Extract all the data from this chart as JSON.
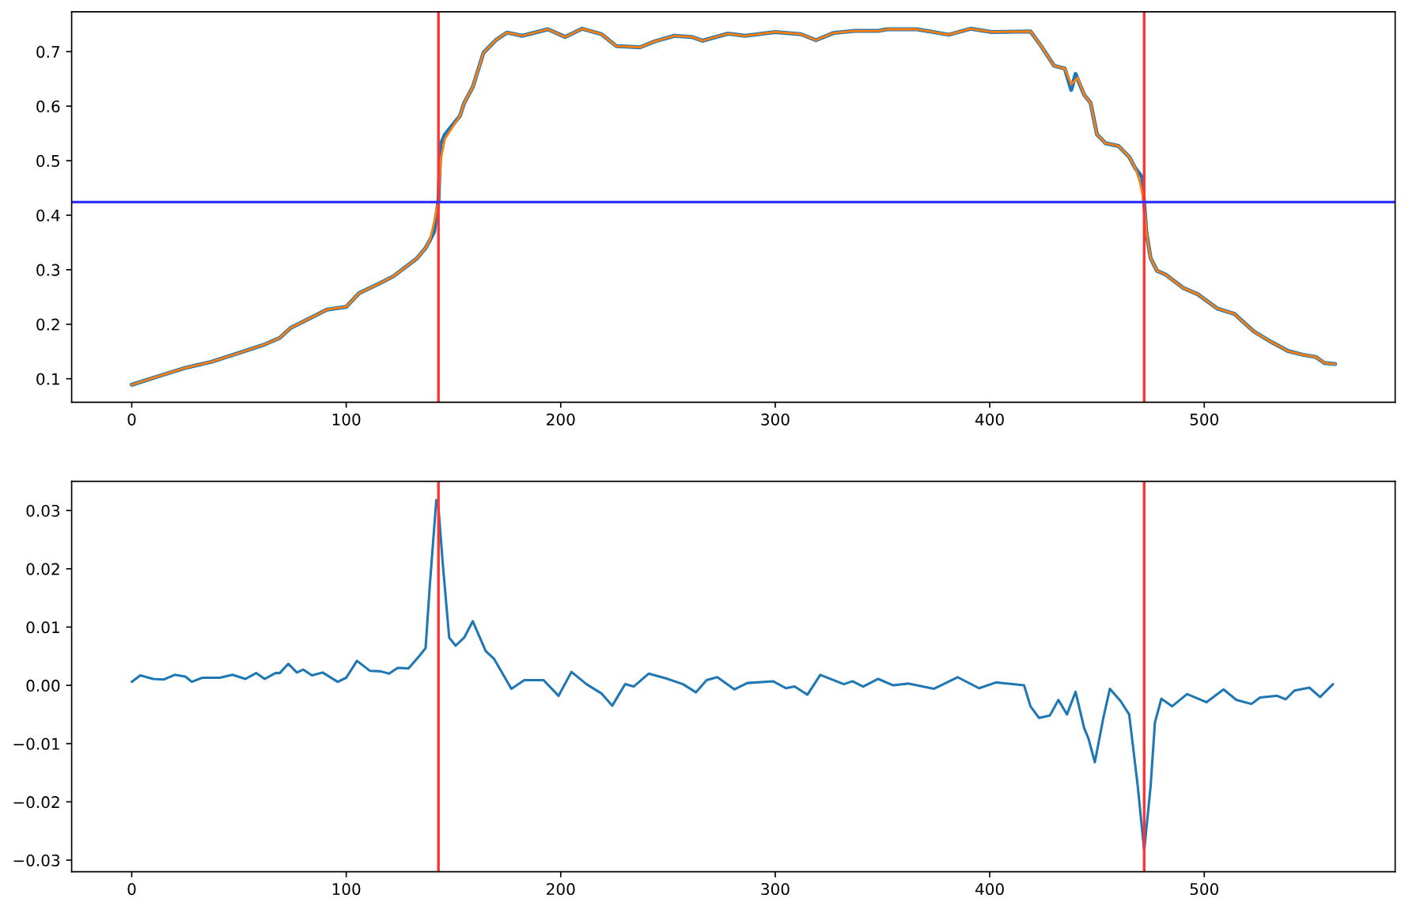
{
  "chart_data": [
    {
      "type": "line",
      "series": [
        {
          "color": "#1f77b4",
          "x": [
            0,
            12,
            25,
            37,
            49,
            62,
            69,
            74,
            81,
            91,
            100,
            106,
            116,
            122,
            128,
            133,
            137,
            139,
            141,
            143,
            144,
            146,
            153,
            155,
            159,
            164,
            170,
            175,
            182,
            194,
            202,
            210,
            219,
            226,
            237,
            244,
            253,
            261,
            266,
            278,
            286,
            300,
            312,
            319,
            327,
            337,
            348,
            352,
            366,
            381,
            391,
            401,
            419,
            424,
            430,
            435,
            438,
            440,
            444,
            447,
            450,
            454,
            460,
            465,
            468,
            471,
            472,
            473,
            475,
            478,
            482,
            490,
            497,
            506,
            514,
            523,
            531,
            539,
            546,
            552,
            556,
            561
          ],
          "values": [
            0.089,
            0.104,
            0.12,
            0.131,
            0.146,
            0.163,
            0.175,
            0.193,
            0.207,
            0.227,
            0.232,
            0.257,
            0.276,
            0.288,
            0.306,
            0.321,
            0.34,
            0.354,
            0.37,
            0.427,
            0.53,
            0.548,
            0.582,
            0.606,
            0.635,
            0.698,
            0.722,
            0.735,
            0.729,
            0.741,
            0.727,
            0.742,
            0.732,
            0.71,
            0.708,
            0.719,
            0.729,
            0.727,
            0.72,
            0.733,
            0.729,
            0.736,
            0.732,
            0.721,
            0.734,
            0.738,
            0.738,
            0.741,
            0.741,
            0.731,
            0.742,
            0.736,
            0.737,
            0.71,
            0.674,
            0.669,
            0.63,
            0.659,
            0.621,
            0.606,
            0.548,
            0.532,
            0.527,
            0.507,
            0.485,
            0.47,
            0.422,
            0.369,
            0.321,
            0.298,
            0.291,
            0.267,
            0.255,
            0.229,
            0.219,
            0.187,
            0.168,
            0.151,
            0.144,
            0.14,
            0.129,
            0.127
          ]
        },
        {
          "color": "#ff7f0e",
          "x": [
            0,
            12,
            25,
            37,
            49,
            62,
            69,
            74,
            81,
            91,
            100,
            106,
            116,
            122,
            128,
            133,
            137,
            139,
            141,
            143,
            144,
            146,
            153,
            155,
            159,
            164,
            170,
            175,
            182,
            194,
            202,
            210,
            219,
            226,
            237,
            244,
            253,
            261,
            266,
            278,
            286,
            300,
            312,
            319,
            327,
            337,
            348,
            352,
            366,
            381,
            391,
            401,
            419,
            424,
            430,
            435,
            438,
            441,
            444,
            447,
            450,
            454,
            460,
            465,
            468,
            470,
            472,
            473,
            475,
            478,
            482,
            490,
            497,
            506,
            514,
            523,
            531,
            539,
            546,
            552,
            556,
            561
          ],
          "values": [
            0.089,
            0.104,
            0.12,
            0.131,
            0.146,
            0.163,
            0.175,
            0.193,
            0.207,
            0.227,
            0.232,
            0.257,
            0.276,
            0.288,
            0.306,
            0.321,
            0.34,
            0.354,
            0.388,
            0.427,
            0.5,
            0.54,
            0.582,
            0.606,
            0.635,
            0.698,
            0.722,
            0.735,
            0.729,
            0.741,
            0.727,
            0.742,
            0.732,
            0.71,
            0.708,
            0.719,
            0.729,
            0.727,
            0.72,
            0.733,
            0.729,
            0.736,
            0.732,
            0.721,
            0.734,
            0.738,
            0.738,
            0.741,
            0.741,
            0.731,
            0.742,
            0.736,
            0.737,
            0.71,
            0.674,
            0.669,
            0.64,
            0.652,
            0.621,
            0.606,
            0.548,
            0.532,
            0.527,
            0.507,
            0.485,
            0.461,
            0.422,
            0.369,
            0.321,
            0.298,
            0.291,
            0.267,
            0.255,
            0.229,
            0.219,
            0.187,
            0.168,
            0.151,
            0.144,
            0.14,
            0.129,
            0.127
          ]
        }
      ],
      "xlim": [
        -28,
        589
      ],
      "xticks": [
        0,
        100,
        200,
        300,
        400,
        500
      ],
      "ylim": [
        0.057,
        0.773
      ],
      "yticks": [
        0.1,
        0.2,
        0.3,
        0.4,
        0.5,
        0.6,
        0.7
      ],
      "ref_lines": [
        {
          "axis": "x",
          "value": 143,
          "color": "#ff3333"
        },
        {
          "axis": "x",
          "value": 472,
          "color": "#ff3333"
        },
        {
          "axis": "y",
          "value": 0.424,
          "color": "#3333ff"
        }
      ]
    },
    {
      "type": "line",
      "series": [
        {
          "color": "#1f77b4",
          "x": [
            0,
            4,
            10,
            15,
            20,
            25,
            28,
            33,
            41,
            47,
            53,
            58,
            62,
            67,
            69,
            73,
            77,
            80,
            84,
            89,
            96,
            100,
            105,
            111,
            116,
            120,
            124,
            129,
            134,
            137,
            139,
            142,
            143,
            145,
            148,
            151,
            155,
            159,
            165,
            169,
            177,
            183,
            192,
            199,
            205,
            212,
            219,
            224,
            230,
            234,
            241,
            249,
            257,
            263,
            268,
            273,
            281,
            287,
            299,
            305,
            309,
            315,
            321,
            332,
            336,
            341,
            348,
            355,
            362,
            374,
            385,
            395,
            403,
            416,
            419,
            423,
            428,
            432,
            436,
            440,
            444,
            446,
            449,
            453,
            456,
            461,
            465,
            469,
            472,
            475,
            477,
            480,
            485,
            492,
            501,
            509,
            515,
            522,
            526,
            534,
            538,
            542,
            549,
            554,
            560
          ],
          "values": [
            0.0006,
            0.0017,
            0.0011,
            0.001,
            0.0018,
            0.0015,
            0.0006,
            0.0013,
            0.0013,
            0.0018,
            0.0011,
            0.0021,
            0.0011,
            0.0021,
            0.0021,
            0.0037,
            0.0022,
            0.0027,
            0.0017,
            0.0022,
            0.0006,
            0.0013,
            0.0042,
            0.0025,
            0.0024,
            0.002,
            0.003,
            0.0029,
            0.005,
            0.0064,
            0.0173,
            0.0318,
            0.0305,
            0.0209,
            0.0082,
            0.0068,
            0.0082,
            0.011,
            0.0059,
            0.0045,
            -0.0006,
            0.0009,
            0.0009,
            -0.0018,
            0.0023,
            0.0002,
            -0.0014,
            -0.0035,
            0.0002,
            -0.0002,
            0.002,
            0.0012,
            0.0002,
            -0.0012,
            0.0009,
            0.0014,
            -0.0007,
            0.0004,
            0.0007,
            -0.0005,
            -0.0002,
            -0.0016,
            0.0018,
            0.0002,
            0.0007,
            -0.0002,
            0.0011,
            0.0,
            0.0003,
            -0.0006,
            0.0014,
            -0.0005,
            0.0005,
            0.0,
            -0.0036,
            -0.0056,
            -0.0052,
            -0.0025,
            -0.005,
            -0.0011,
            -0.0073,
            -0.0091,
            -0.0132,
            -0.0055,
            -0.0006,
            -0.0027,
            -0.005,
            -0.0173,
            -0.0284,
            -0.0173,
            -0.0064,
            -0.0023,
            -0.0036,
            -0.0015,
            -0.0029,
            -0.0007,
            -0.0025,
            -0.0032,
            -0.0021,
            -0.0018,
            -0.0024,
            -0.0009,
            -0.0004,
            -0.002,
            0.0002
          ]
        }
      ],
      "xlim": [
        -28,
        589
      ],
      "xticks": [
        0,
        100,
        200,
        300,
        400,
        500
      ],
      "ylim": [
        -0.032,
        0.035
      ],
      "yticks": [
        {
          "value": -0.03,
          "label": "−0.03"
        },
        {
          "value": -0.02,
          "label": "−0.02"
        },
        {
          "value": -0.01,
          "label": "−0.01"
        },
        {
          "value": 0,
          "label": "0.00"
        },
        0.01,
        0.02,
        0.03
      ],
      "ref_lines": [
        {
          "axis": "x",
          "value": 143,
          "color": "#ff3333"
        },
        {
          "axis": "x",
          "value": 472,
          "color": "#ff3333"
        }
      ]
    }
  ]
}
